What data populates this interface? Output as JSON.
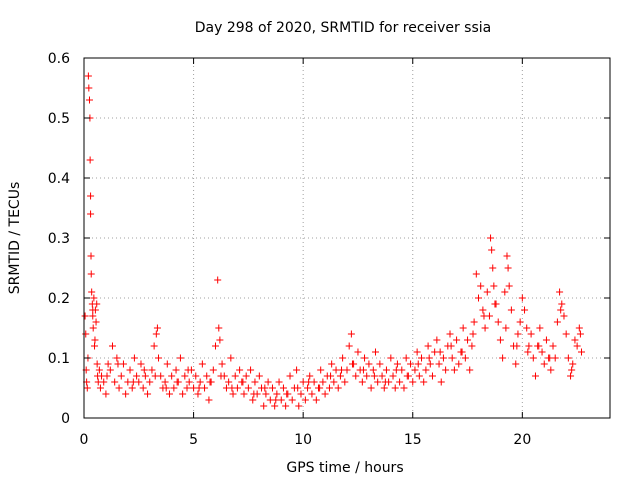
{
  "chart_data": {
    "type": "scatter",
    "title": "Day 298 of 2020, SRMTID for receiver ssia",
    "xlabel": "GPS time / hours",
    "ylabel": "SRMTID / TECUs",
    "xlim": [
      0,
      24
    ],
    "ylim": [
      0,
      0.6
    ],
    "x_ticks": [
      0,
      5,
      10,
      15,
      20
    ],
    "x_tick_labels": [
      "0",
      "5",
      "10",
      "15",
      "20"
    ],
    "y_ticks": [
      0,
      0.1,
      0.2,
      0.3,
      0.4,
      0.5,
      0.6
    ],
    "y_tick_labels": [
      "0",
      "0.1",
      "0.2",
      "0.3",
      "0.4",
      "0.5",
      "0.6"
    ],
    "grid": true,
    "marker": "+",
    "series": [
      {
        "name": "SRMTID",
        "color": "#ff0000",
        "x": [
          0.05,
          0.08,
          0.1,
          0.12,
          0.15,
          0.18,
          0.2,
          0.22,
          0.25,
          0.27,
          0.28,
          0.3,
          0.3,
          0.32,
          0.33,
          0.35,
          0.38,
          0.4,
          0.42,
          0.45,
          0.48,
          0.5,
          0.52,
          0.55,
          0.58,
          0.6,
          0.62,
          0.65,
          0.7,
          0.75,
          0.8,
          0.9,
          1.0,
          1.1,
          1.2,
          1.3,
          1.4,
          1.5,
          1.6,
          1.7,
          1.8,
          1.9,
          2.0,
          2.1,
          2.2,
          2.3,
          2.4,
          2.5,
          2.6,
          2.7,
          2.8,
          2.9,
          3.0,
          3.1,
          3.2,
          3.3,
          3.35,
          3.4,
          3.5,
          3.6,
          3.7,
          3.8,
          3.9,
          4.0,
          4.1,
          4.2,
          4.3,
          4.4,
          4.5,
          4.6,
          4.7,
          4.8,
          4.9,
          5.0,
          5.1,
          5.2,
          5.3,
          5.4,
          5.5,
          5.6,
          5.7,
          5.8,
          5.9,
          6.0,
          6.1,
          6.15,
          6.2,
          6.3,
          6.4,
          6.5,
          6.6,
          6.7,
          6.8,
          6.9,
          7.0,
          7.1,
          7.2,
          7.3,
          7.4,
          7.5,
          7.6,
          7.7,
          7.8,
          7.9,
          8.0,
          8.1,
          8.2,
          8.3,
          8.4,
          8.5,
          8.6,
          8.7,
          8.8,
          8.9,
          9.0,
          9.1,
          9.2,
          9.3,
          9.4,
          9.5,
          9.6,
          9.7,
          9.8,
          9.9,
          10.0,
          10.1,
          10.2,
          10.3,
          10.4,
          10.5,
          10.6,
          10.7,
          10.8,
          10.9,
          11.0,
          11.1,
          11.2,
          11.3,
          11.4,
          11.5,
          11.6,
          11.7,
          11.8,
          11.9,
          12.0,
          12.1,
          12.2,
          12.3,
          12.4,
          12.5,
          12.6,
          12.7,
          12.8,
          12.9,
          13.0,
          13.1,
          13.2,
          13.3,
          13.4,
          13.5,
          13.6,
          13.7,
          13.8,
          13.9,
          14.0,
          14.1,
          14.2,
          14.3,
          14.4,
          14.5,
          14.6,
          14.7,
          14.8,
          14.9,
          15.0,
          15.1,
          15.2,
          15.3,
          15.4,
          15.5,
          15.6,
          15.7,
          15.8,
          15.9,
          16.0,
          16.1,
          16.2,
          16.3,
          16.4,
          16.5,
          16.6,
          16.7,
          16.8,
          16.9,
          17.0,
          17.1,
          17.2,
          17.3,
          17.4,
          17.5,
          17.6,
          17.7,
          17.8,
          17.9,
          18.0,
          18.1,
          18.2,
          18.3,
          18.4,
          18.5,
          18.55,
          18.6,
          18.65,
          18.7,
          18.8,
          18.9,
          19.0,
          19.1,
          19.2,
          19.3,
          19.35,
          19.4,
          19.5,
          19.6,
          19.7,
          19.8,
          19.9,
          20.0,
          20.1,
          20.2,
          20.3,
          20.4,
          20.5,
          20.6,
          20.7,
          20.8,
          20.9,
          21.0,
          21.1,
          21.2,
          21.3,
          21.4,
          21.5,
          21.6,
          21.7,
          21.8,
          21.9,
          22.0,
          22.1,
          22.2,
          22.3,
          22.4,
          22.5,
          22.6,
          22.7,
          0.4,
          1.05,
          1.55,
          2.25,
          2.75,
          3.25,
          3.75,
          4.25,
          4.75,
          5.25,
          5.75,
          6.25,
          6.75,
          7.25,
          7.75,
          8.25,
          8.75,
          9.25,
          9.75,
          10.25,
          10.75,
          11.25,
          11.75,
          12.25,
          12.75,
          13.25,
          13.75,
          14.25,
          14.75,
          15.25,
          15.75,
          16.25,
          16.75,
          17.25,
          17.75,
          18.25,
          18.75,
          19.25,
          19.75,
          20.25,
          20.75,
          21.25,
          21.75,
          22.25,
          22.65
        ],
        "y": [
          0.17,
          0.14,
          0.08,
          0.06,
          0.05,
          0.1,
          0.57,
          0.55,
          0.53,
          0.5,
          0.43,
          0.37,
          0.34,
          0.27,
          0.24,
          0.21,
          0.19,
          0.17,
          0.15,
          0.2,
          0.12,
          0.13,
          0.18,
          0.16,
          0.19,
          0.09,
          0.07,
          0.06,
          0.08,
          0.05,
          0.07,
          0.06,
          0.04,
          0.09,
          0.08,
          0.12,
          0.06,
          0.1,
          0.05,
          0.07,
          0.09,
          0.04,
          0.06,
          0.08,
          0.05,
          0.1,
          0.07,
          0.06,
          0.09,
          0.05,
          0.07,
          0.04,
          0.06,
          0.08,
          0.12,
          0.14,
          0.15,
          0.1,
          0.07,
          0.05,
          0.06,
          0.09,
          0.04,
          0.07,
          0.05,
          0.08,
          0.06,
          0.1,
          0.04,
          0.07,
          0.05,
          0.06,
          0.08,
          0.05,
          0.07,
          0.04,
          0.06,
          0.09,
          0.05,
          0.07,
          0.03,
          0.06,
          0.08,
          0.12,
          0.23,
          0.15,
          0.13,
          0.09,
          0.07,
          0.05,
          0.06,
          0.1,
          0.04,
          0.07,
          0.05,
          0.08,
          0.06,
          0.04,
          0.07,
          0.05,
          0.08,
          0.03,
          0.06,
          0.04,
          0.07,
          0.05,
          0.02,
          0.04,
          0.06,
          0.03,
          0.05,
          0.02,
          0.04,
          0.06,
          0.03,
          0.05,
          0.02,
          0.04,
          0.07,
          0.03,
          0.05,
          0.08,
          0.02,
          0.04,
          0.06,
          0.03,
          0.05,
          0.07,
          0.04,
          0.06,
          0.03,
          0.05,
          0.08,
          0.06,
          0.04,
          0.07,
          0.05,
          0.09,
          0.06,
          0.08,
          0.05,
          0.07,
          0.1,
          0.06,
          0.08,
          0.12,
          0.14,
          0.09,
          0.07,
          0.11,
          0.08,
          0.06,
          0.1,
          0.07,
          0.09,
          0.05,
          0.08,
          0.11,
          0.06,
          0.09,
          0.07,
          0.05,
          0.08,
          0.06,
          0.1,
          0.07,
          0.05,
          0.09,
          0.06,
          0.08,
          0.05,
          0.1,
          0.07,
          0.09,
          0.06,
          0.08,
          0.11,
          0.07,
          0.1,
          0.06,
          0.08,
          0.12,
          0.09,
          0.07,
          0.11,
          0.13,
          0.09,
          0.06,
          0.1,
          0.08,
          0.12,
          0.14,
          0.1,
          0.08,
          0.13,
          0.09,
          0.11,
          0.15,
          0.1,
          0.13,
          0.08,
          0.12,
          0.16,
          0.24,
          0.2,
          0.22,
          0.18,
          0.15,
          0.21,
          0.17,
          0.3,
          0.28,
          0.25,
          0.22,
          0.19,
          0.16,
          0.13,
          0.1,
          0.21,
          0.27,
          0.25,
          0.22,
          0.18,
          0.12,
          0.09,
          0.14,
          0.16,
          0.2,
          0.18,
          0.15,
          0.12,
          0.14,
          0.1,
          0.07,
          0.12,
          0.15,
          0.11,
          0.09,
          0.13,
          0.1,
          0.08,
          0.12,
          0.1,
          0.16,
          0.21,
          0.19,
          0.17,
          0.14,
          0.1,
          0.07,
          0.09,
          0.13,
          0.12,
          0.15,
          0.11,
          0.18,
          0.07,
          0.09,
          0.06,
          0.08,
          0.07,
          0.05,
          0.06,
          0.08,
          0.05,
          0.06,
          0.07,
          0.05,
          0.06,
          0.04,
          0.05,
          0.03,
          0.04,
          0.05,
          0.06,
          0.05,
          0.07,
          0.08,
          0.09,
          0.08,
          0.07,
          0.06,
          0.08,
          0.07,
          0.09,
          0.1,
          0.11,
          0.12,
          0.11,
          0.14,
          0.17,
          0.19,
          0.15,
          0.12,
          0.11,
          0.12,
          0.1,
          0.18,
          0.08,
          0.14
        ]
      }
    ]
  }
}
